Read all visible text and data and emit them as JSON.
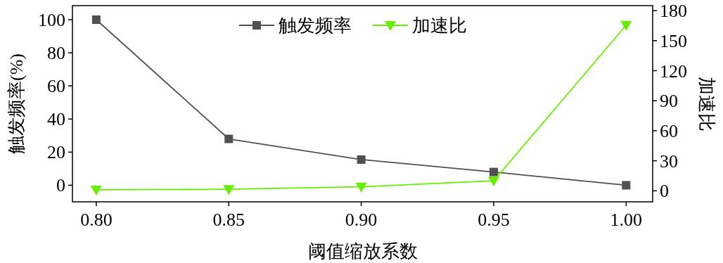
{
  "chart_data": {
    "type": "line",
    "xlabel": "阈值缩放系数",
    "ylabel": "触发频率(%)",
    "y2label": "加速比",
    "x": [
      0.8,
      0.85,
      0.9,
      0.95,
      1.0
    ],
    "xlim": [
      0.791,
      1.01
    ],
    "xticks": [
      {
        "value": 0.8,
        "label": "0.80"
      },
      {
        "value": 0.85,
        "label": "0.85"
      },
      {
        "value": 0.9,
        "label": "0.90"
      },
      {
        "value": 0.95,
        "label": "0.95"
      },
      {
        "value": 1.0,
        "label": "1.00"
      }
    ],
    "ylim": [
      -10,
      108.5
    ],
    "yticks": [
      0,
      20,
      40,
      60,
      80,
      100
    ],
    "y2lim": [
      -11,
      185
    ],
    "y2ticks": [
      0,
      30,
      60,
      90,
      120,
      150,
      180
    ],
    "series": [
      {
        "name": "触发频率",
        "color": "#505050",
        "values": [
          100,
          28,
          15.5,
          8,
          0
        ],
        "marker": "square"
      },
      {
        "name": "加速比",
        "color": "#66ee00",
        "values": [
          1,
          1.5,
          4,
          10,
          165.5
        ],
        "axis": "y2",
        "marker": "triangle"
      }
    ],
    "legend": "top",
    "grid": false,
    "line_style": "solid"
  }
}
